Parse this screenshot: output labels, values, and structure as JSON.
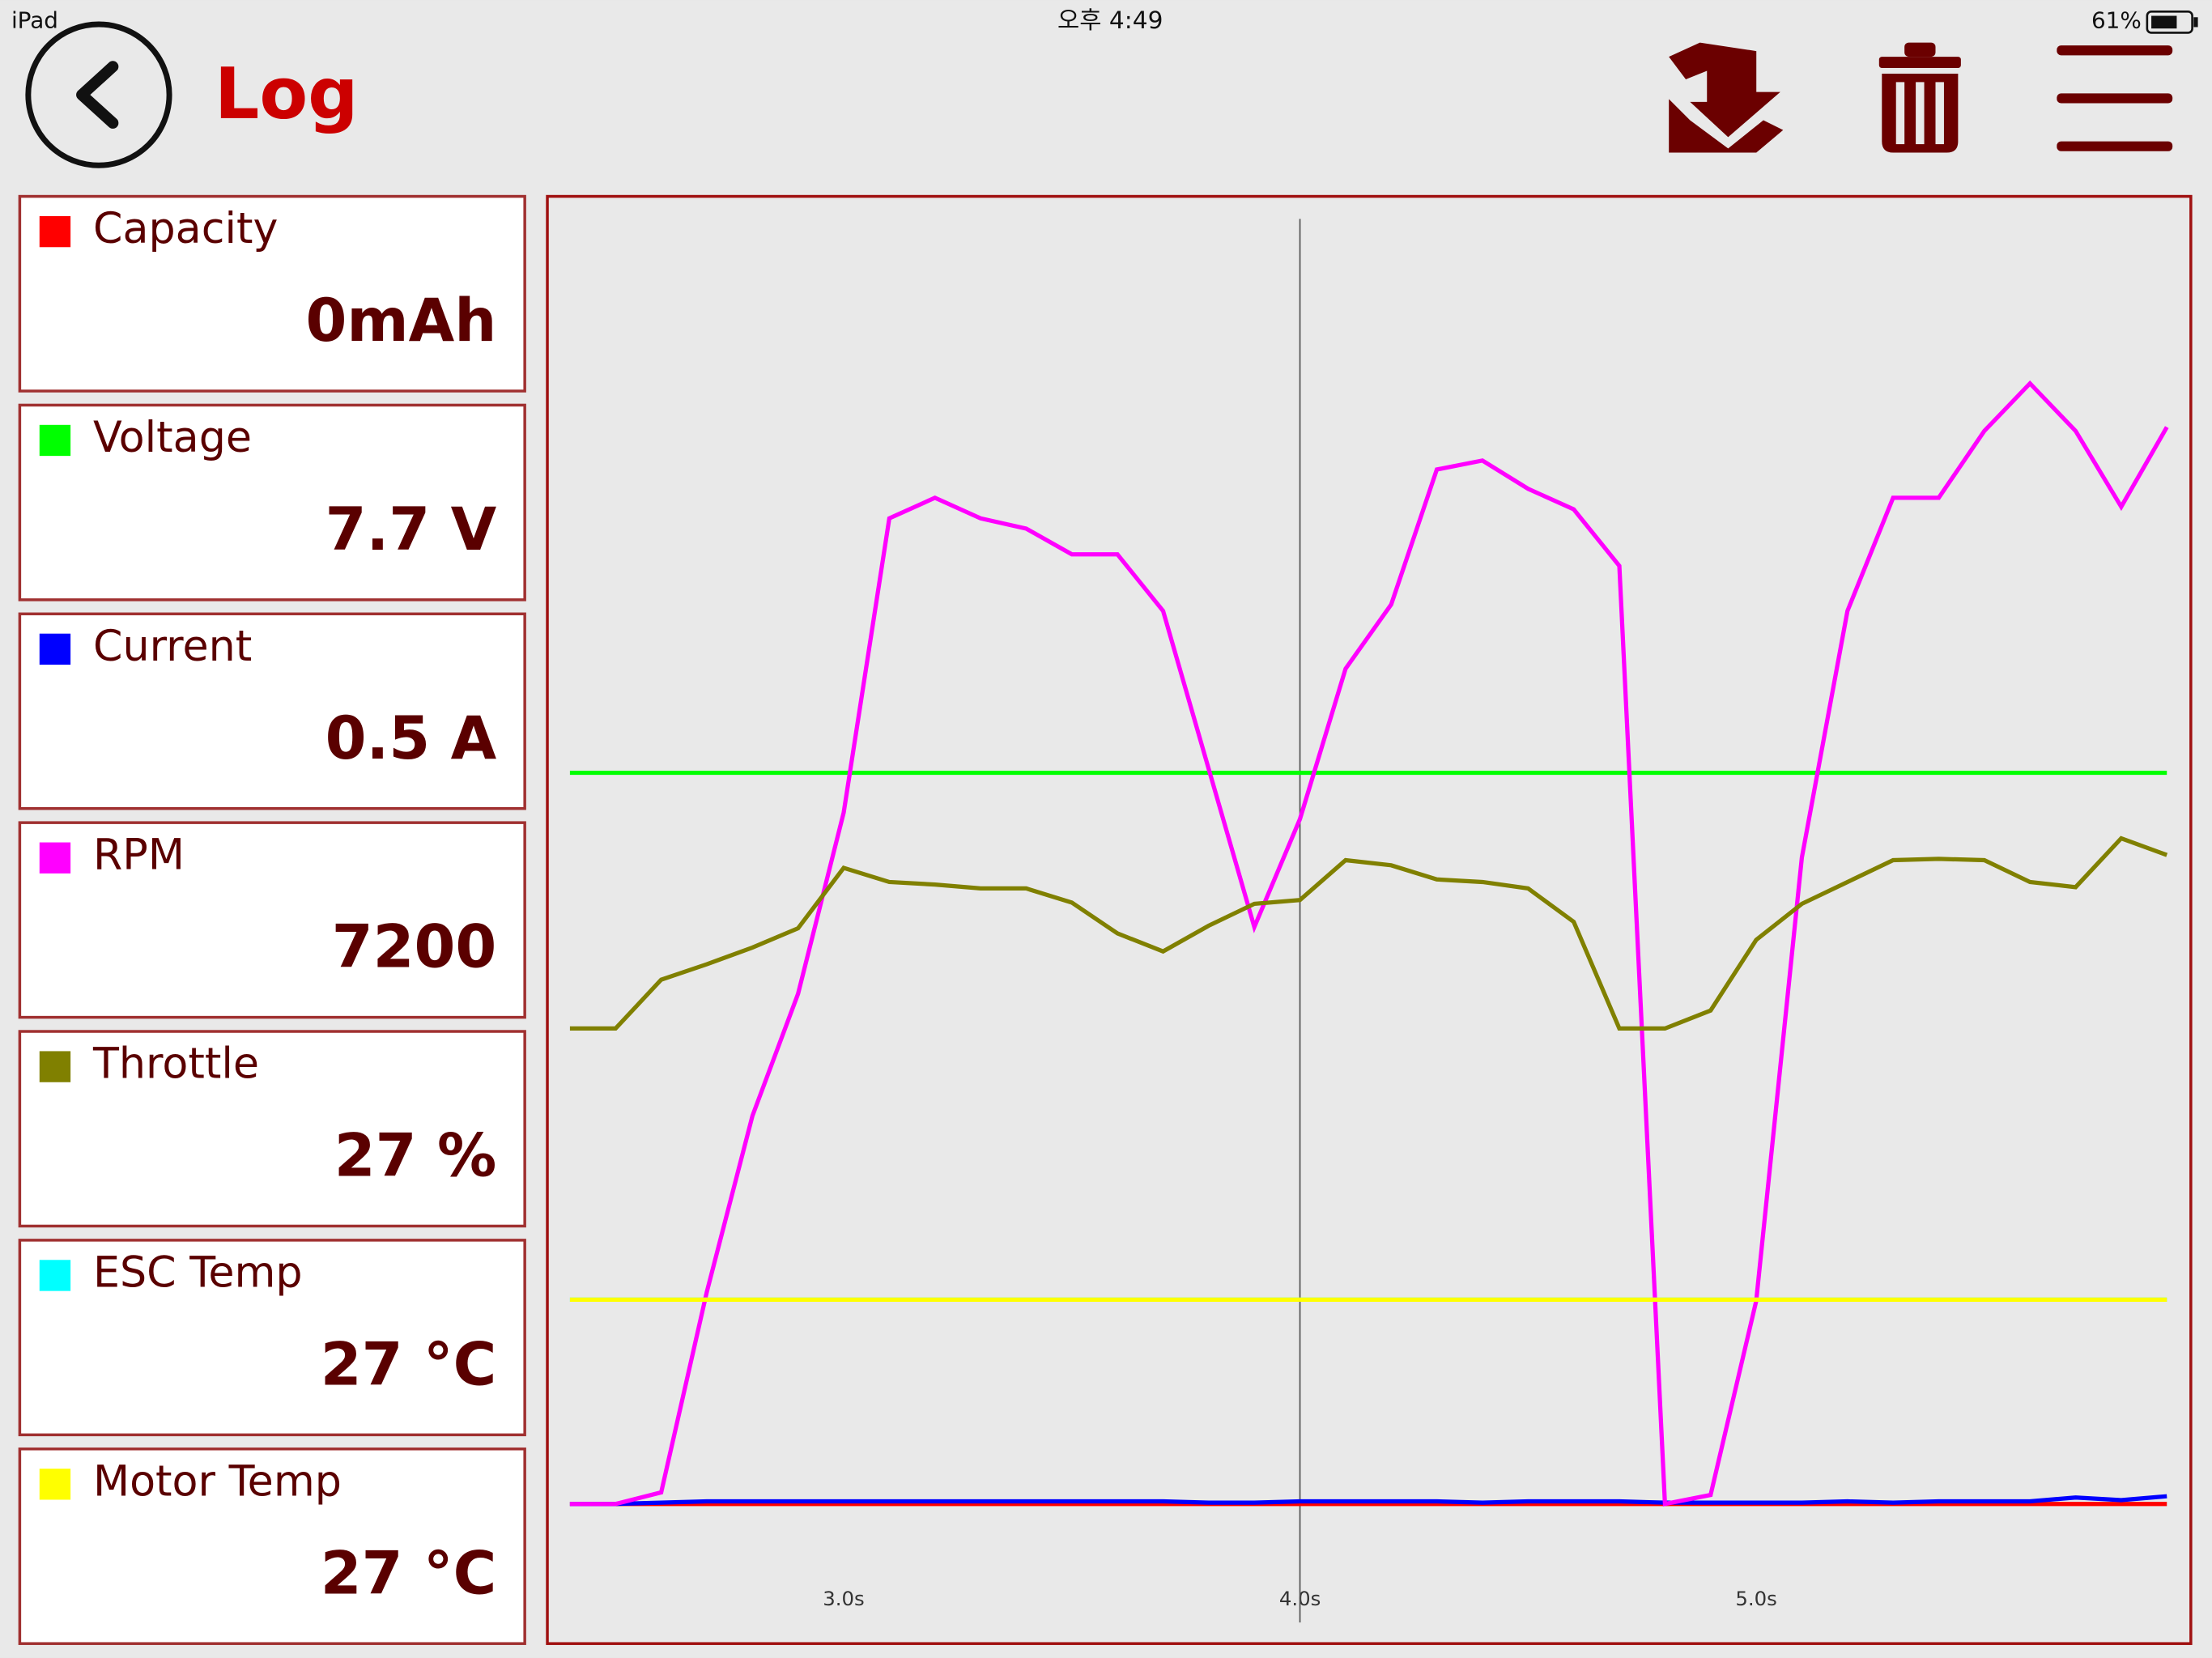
{
  "status_bar": {
    "device": "iPad",
    "time": "오후 4:49",
    "battery": "61%"
  },
  "header": {
    "title": "Log"
  },
  "readouts": [
    "0mAh",
    "7.7 V",
    "0.5 A",
    "7200",
    "27 %",
    "27 °C",
    "27 °C"
  ],
  "chart_data": {
    "type": "line",
    "x": [
      2.4,
      2.5,
      2.6,
      2.7,
      2.8,
      2.9,
      3.0,
      3.1,
      3.2,
      3.3,
      3.4,
      3.5,
      3.6,
      3.7,
      3.8,
      3.9,
      4.0,
      4.1,
      4.2,
      4.3,
      4.4,
      4.5,
      4.6,
      4.7,
      4.8,
      4.9,
      5.0,
      5.1,
      5.2,
      5.3,
      5.4,
      5.5,
      5.6,
      5.7,
      5.8,
      5.9
    ],
    "xlim": [
      2.4,
      5.9
    ],
    "xticks": [
      {
        "value": 3,
        "label": "3.0s"
      },
      {
        "value": 4,
        "label": "4.0s"
      },
      {
        "value": 5,
        "label": "5.0s"
      }
    ],
    "ylim": [
      0,
      100
    ],
    "cursor": 4,
    "series": [
      {
        "name": "Capacity",
        "color": "#ff0000",
        "values": [
          0,
          0,
          0,
          0,
          0,
          0,
          0,
          0,
          0,
          0,
          0,
          0,
          0,
          0,
          0,
          0,
          0,
          0,
          0,
          0,
          0,
          0,
          0,
          0,
          0,
          0,
          0,
          0,
          0,
          0,
          0,
          0,
          0,
          0,
          0,
          0
        ]
      },
      {
        "name": "Voltage",
        "color": "#00ff00",
        "values": [
          56.9,
          56.9,
          56.9,
          56.9,
          56.9,
          56.9,
          56.9,
          56.9,
          56.9,
          56.9,
          56.9,
          56.9,
          56.9,
          56.9,
          56.9,
          56.9,
          56.9,
          56.9,
          56.9,
          56.9,
          56.9,
          56.9,
          56.9,
          56.9,
          56.9,
          56.9,
          56.9,
          56.9,
          56.9,
          56.9,
          56.9,
          56.9,
          56.9,
          56.9,
          56.9,
          56.9
        ]
      },
      {
        "name": "Current",
        "color": "#0000ff",
        "values": [
          0,
          0,
          0.1,
          0.2,
          0.2,
          0.2,
          0.2,
          0.2,
          0.2,
          0.2,
          0.2,
          0.2,
          0.2,
          0.2,
          0.1,
          0.1,
          0.2,
          0.2,
          0.2,
          0.2,
          0.1,
          0.2,
          0.2,
          0.2,
          0.1,
          0.1,
          0.1,
          0.1,
          0.2,
          0.1,
          0.2,
          0.2,
          0.2,
          0.5,
          0.3,
          0.6
        ]
      },
      {
        "name": "RPM",
        "color": "#ff00ff",
        "values": [
          0,
          0,
          0.9,
          16.5,
          30.2,
          39.7,
          53.8,
          76.7,
          78.3,
          76.7,
          75.9,
          73.9,
          73.9,
          69.5,
          57.2,
          44.9,
          53.3,
          65.0,
          70.0,
          80.5,
          81.2,
          79.0,
          77.4,
          73.0,
          0,
          0.7,
          15.8,
          50.3,
          69.5,
          78.3,
          78.3,
          83.5,
          87.2,
          83.5,
          77.6,
          83.8
        ]
      },
      {
        "name": "Throttle",
        "color": "#808000",
        "values": [
          37.0,
          37.0,
          40.8,
          42.0,
          43.3,
          44.8,
          49.5,
          48.4,
          48.2,
          47.9,
          47.9,
          46.8,
          44.4,
          43.0,
          45.0,
          46.7,
          47.0,
          50.1,
          49.7,
          48.6,
          48.4,
          47.9,
          45.3,
          37.0,
          37.0,
          38.4,
          43.9,
          46.7,
          48.4,
          50.1,
          50.2,
          50.1,
          48.4,
          48.0,
          51.8,
          50.5
        ]
      },
      {
        "name": "ESC Temp",
        "color": "#00ffff",
        "values": [
          15.9,
          15.9,
          15.9,
          15.9,
          15.9,
          15.9,
          15.9,
          15.9,
          15.9,
          15.9,
          15.9,
          15.9,
          15.9,
          15.9,
          15.9,
          15.9,
          15.9,
          15.9,
          15.9,
          15.9,
          15.9,
          15.9,
          15.9,
          15.9,
          15.9,
          15.9,
          15.9,
          15.9,
          15.9,
          15.9,
          15.9,
          15.9,
          15.9,
          15.9,
          15.9,
          15.9
        ]
      },
      {
        "name": "Motor Temp",
        "color": "#ffff00",
        "values": [
          15.9,
          15.9,
          15.9,
          15.9,
          15.9,
          15.9,
          15.9,
          15.9,
          15.9,
          15.9,
          15.9,
          15.9,
          15.9,
          15.9,
          15.9,
          15.9,
          15.9,
          15.9,
          15.9,
          15.9,
          15.9,
          15.9,
          15.9,
          15.9,
          15.9,
          15.9,
          15.9,
          15.9,
          15.9,
          15.9,
          15.9,
          15.9,
          15.9,
          15.9,
          15.9,
          15.9
        ]
      }
    ]
  }
}
